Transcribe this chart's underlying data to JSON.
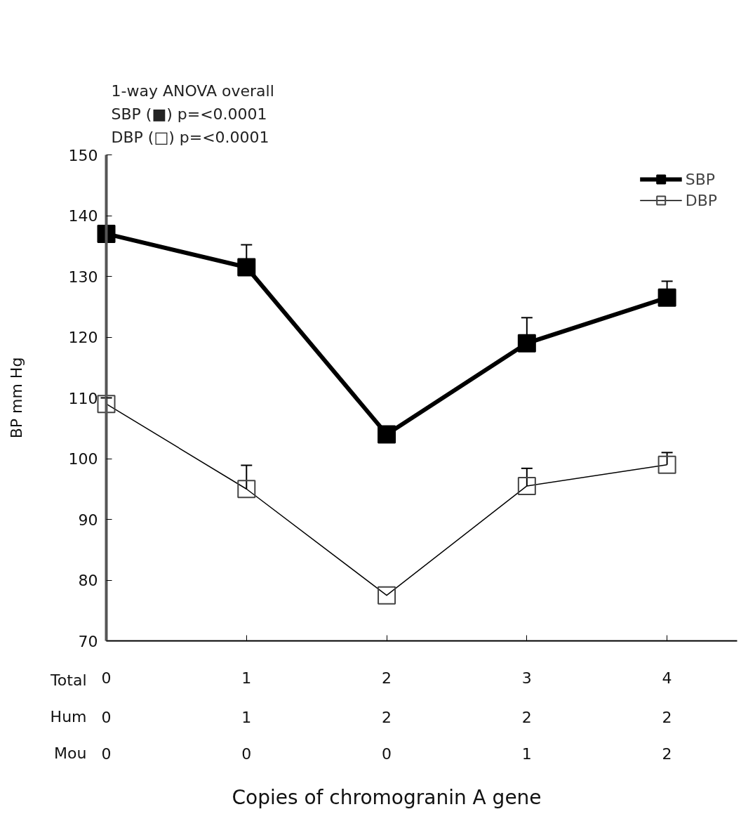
{
  "chart_data": {
    "type": "line",
    "ylabel": "BP mm Hg",
    "x": [
      0,
      1,
      2,
      3,
      4
    ],
    "xticks": [
      0,
      1,
      2,
      3,
      4
    ],
    "xlim": [
      0,
      4.5
    ],
    "ylim": [
      70,
      150
    ],
    "yticks": [
      70,
      80,
      90,
      100,
      110,
      120,
      130,
      140,
      150
    ],
    "series": [
      {
        "name": "SBP",
        "color": "#000000",
        "marker": "square",
        "values": [
          137,
          131.5,
          104,
          119,
          126.5
        ],
        "errors": [
          null,
          [
            131.5,
            135.2
          ],
          null,
          [
            119,
            123.2
          ],
          [
            126.5,
            129.2
          ]
        ]
      },
      {
        "name": "DBP",
        "color": "#000000",
        "marker": "square",
        "values": [
          109,
          95,
          77.5,
          95.5,
          99
        ],
        "errors": [
          [
            109,
            110
          ],
          [
            95,
            98.9
          ],
          null,
          [
            95.5,
            98.4
          ],
          [
            99,
            101
          ]
        ]
      }
    ],
    "annotations": [
      "1-way ANOVA overall",
      "SBP (■) p=<0.0001",
      "DBP (□) p=<0.0001",
      "Copies of chromogranin A gene",
      "Total",
      "Hum",
      "Mou",
      "0",
      "1",
      "2",
      "2",
      "2",
      "0",
      "0",
      "0",
      "1",
      "2"
    ],
    "legend": "top right",
    "grid": false
  }
}
